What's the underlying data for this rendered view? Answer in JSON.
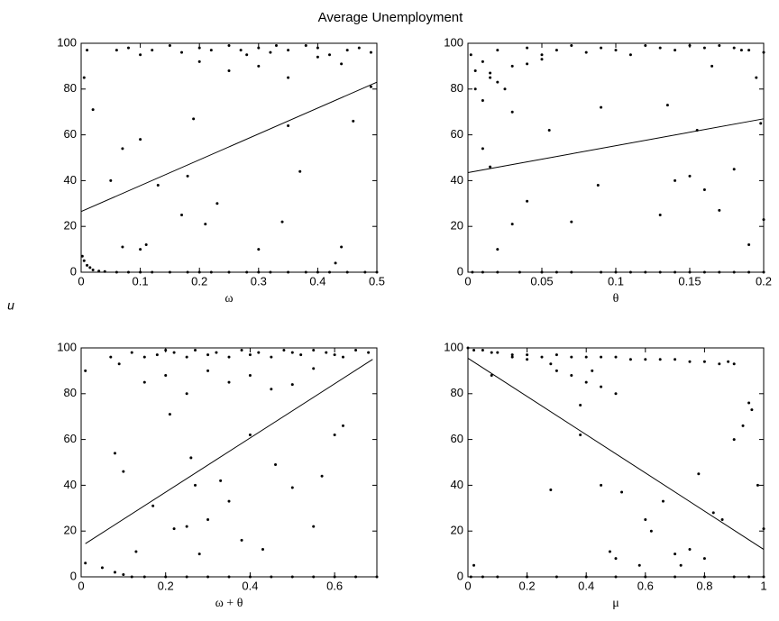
{
  "title": "Average Unemployment",
  "ylabel": "u",
  "chart_data": [
    {
      "type": "scatter",
      "xlabel": "ω",
      "xlim": [
        0,
        0.5
      ],
      "ylim": [
        0,
        100
      ],
      "xticks": [
        0,
        0.1,
        0.2,
        0.3,
        0.4,
        0.5
      ],
      "yticks": [
        0,
        20,
        40,
        60,
        80,
        100
      ],
      "series": [
        {
          "type": "scatter",
          "color": "#000000",
          "x": [
            0.002,
            0.005,
            0.01,
            0.015,
            0.02,
            0.03,
            0.04,
            0.06,
            0.08,
            0.1,
            0.12,
            0.15,
            0.18,
            0.2,
            0.22,
            0.25,
            0.28,
            0.3,
            0.32,
            0.35,
            0.38,
            0.4,
            0.42,
            0.45,
            0.48,
            0.5,
            0.005,
            0.01,
            0.06,
            0.08,
            0.1,
            0.12,
            0.15,
            0.17,
            0.2,
            0.22,
            0.25,
            0.27,
            0.3,
            0.32,
            0.35,
            0.38,
            0.4,
            0.42,
            0.45,
            0.47,
            0.49,
            0.2,
            0.25,
            0.28,
            0.3,
            0.33,
            0.35,
            0.4,
            0.44,
            0.02,
            0.05,
            0.07,
            0.1,
            0.11,
            0.13,
            0.17,
            0.19,
            0.21,
            0.23,
            0.3,
            0.34,
            0.35,
            0.37,
            0.43,
            0.46,
            0.49,
            0.07,
            0.1,
            0.18,
            0.44
          ],
          "values": [
            7,
            5,
            3,
            2,
            1,
            0.5,
            0.3,
            0,
            0,
            0,
            0,
            0,
            0,
            0,
            0,
            0,
            0,
            0,
            0,
            0,
            0,
            0,
            0,
            0,
            0,
            0,
            85,
            97,
            97,
            98,
            95,
            97,
            99,
            96,
            98,
            97,
            99,
            97,
            98,
            96,
            97,
            99,
            98,
            95,
            97,
            98,
            96,
            92,
            88,
            95,
            90,
            99,
            85,
            94,
            91,
            71,
            40,
            54,
            58,
            12,
            38,
            25,
            67,
            21,
            30,
            10,
            22,
            64,
            44,
            4,
            66,
            81,
            11,
            10,
            42,
            11
          ]
        },
        {
          "type": "line",
          "color": "#000000",
          "x": [
            0,
            0.5
          ],
          "values": [
            26.5,
            83
          ]
        }
      ]
    },
    {
      "type": "scatter",
      "xlabel": "θ",
      "xlim": [
        0,
        0.2
      ],
      "ylim": [
        0,
        100
      ],
      "xticks": [
        0,
        0.05,
        0.1,
        0.15,
        0.2
      ],
      "yticks": [
        0,
        20,
        40,
        60,
        80,
        100
      ],
      "series": [
        {
          "type": "scatter",
          "color": "#000000",
          "x": [
            0.002,
            0.005,
            0.01,
            0.015,
            0.02,
            0.025,
            0.03,
            0.04,
            0.05,
            0.06,
            0.07,
            0.08,
            0.09,
            0.1,
            0.11,
            0.12,
            0.13,
            0.14,
            0.15,
            0.16,
            0.17,
            0.18,
            0.19,
            0.2,
            0.005,
            0.01,
            0.015,
            0.02,
            0.03,
            0.04,
            0.05,
            0.165,
            0.185,
            0.195,
            0.003,
            0.01,
            0.02,
            0.035,
            0.05,
            0.06,
            0.07,
            0.09,
            0.1,
            0.11,
            0.12,
            0.13,
            0.14,
            0.15,
            0.16,
            0.17,
            0.18,
            0.19,
            0.2,
            0.01,
            0.02,
            0.03,
            0.04,
            0.055,
            0.07,
            0.088,
            0.09,
            0.13,
            0.135,
            0.14,
            0.15,
            0.155,
            0.16,
            0.17,
            0.18,
            0.19,
            0.198,
            0.015,
            0.2
          ],
          "values": [
            95,
            88,
            92,
            85,
            97,
            80,
            90,
            98,
            95,
            97,
            99,
            96,
            98,
            97,
            95,
            99,
            98,
            97,
            99,
            98,
            99,
            98,
            97,
            96,
            80,
            75,
            87,
            83,
            70,
            91,
            93,
            90,
            97,
            85,
            0,
            0,
            0,
            0,
            0,
            0,
            0,
            0,
            0,
            0,
            0,
            0,
            0,
            0,
            0,
            0,
            0,
            0,
            0,
            54,
            10,
            21,
            31,
            62,
            22,
            38,
            72,
            25,
            73,
            40,
            42,
            62,
            36,
            27,
            45,
            12,
            65,
            46,
            23
          ]
        },
        {
          "type": "line",
          "color": "#000000",
          "x": [
            0,
            0.2
          ],
          "values": [
            43.5,
            67
          ]
        }
      ]
    },
    {
      "type": "scatter",
      "xlabel": "ω + θ",
      "xlim": [
        0,
        0.7
      ],
      "ylim": [
        0,
        100
      ],
      "xticks": [
        0,
        0.2,
        0.4,
        0.6
      ],
      "yticks": [
        0,
        20,
        40,
        60,
        80,
        100
      ],
      "series": [
        {
          "type": "scatter",
          "color": "#000000",
          "x": [
            0.07,
            0.09,
            0.12,
            0.15,
            0.18,
            0.2,
            0.22,
            0.25,
            0.27,
            0.3,
            0.32,
            0.35,
            0.38,
            0.4,
            0.42,
            0.45,
            0.48,
            0.5,
            0.52,
            0.55,
            0.58,
            0.6,
            0.62,
            0.65,
            0.68,
            0.15,
            0.2,
            0.25,
            0.3,
            0.35,
            0.4,
            0.45,
            0.5,
            0.55,
            0.01,
            0.05,
            0.08,
            0.1,
            0.12,
            0.15,
            0.2,
            0.25,
            0.3,
            0.35,
            0.4,
            0.45,
            0.5,
            0.55,
            0.6,
            0.65,
            0.7,
            0.01,
            0.08,
            0.1,
            0.13,
            0.17,
            0.21,
            0.22,
            0.26,
            0.27,
            0.28,
            0.3,
            0.33,
            0.35,
            0.38,
            0.4,
            0.43,
            0.46,
            0.5,
            0.55,
            0.57,
            0.6,
            0.62,
            0.25
          ],
          "values": [
            96,
            93,
            98,
            96,
            97,
            99,
            98,
            96,
            99,
            97,
            98,
            96,
            99,
            97,
            98,
            96,
            99,
            98,
            97,
            99,
            98,
            97,
            96,
            99,
            98,
            85,
            88,
            80,
            90,
            85,
            88,
            82,
            84,
            91,
            6,
            4,
            2,
            1,
            0,
            0,
            0,
            0,
            0,
            0,
            0,
            0,
            0,
            0,
            0,
            0,
            0,
            90,
            54,
            46,
            11,
            31,
            71,
            21,
            52,
            40,
            10,
            25,
            42,
            33,
            16,
            62,
            12,
            49,
            39,
            22,
            44,
            62,
            66,
            22
          ]
        },
        {
          "type": "line",
          "color": "#000000",
          "x": [
            0.01,
            0.69
          ],
          "values": [
            14.5,
            95
          ]
        }
      ]
    },
    {
      "type": "scatter",
      "xlabel": "μ",
      "xlim": [
        0,
        1
      ],
      "ylim": [
        0,
        100
      ],
      "xticks": [
        0,
        0.2,
        0.4,
        0.6,
        0.8,
        1
      ],
      "yticks": [
        0,
        20,
        40,
        60,
        80,
        100
      ],
      "series": [
        {
          "type": "scatter",
          "color": "#000000",
          "x": [
            0,
            0.02,
            0.05,
            0.08,
            0.1,
            0.15,
            0.2,
            0.25,
            0.3,
            0.35,
            0.4,
            0.45,
            0.5,
            0.55,
            0.6,
            0.65,
            0.7,
            0.75,
            0.8,
            0.85,
            0.88,
            0.9,
            0.3,
            0.35,
            0.4,
            0.45,
            0.5,
            0.28,
            0.38,
            0.42,
            0.2,
            0.15,
            0.01,
            0.05,
            0.1,
            0.2,
            0.3,
            0.4,
            0.5,
            0.6,
            0.7,
            0.8,
            0.9,
            0.95,
            1,
            0.02,
            0.08,
            0.28,
            0.38,
            0.45,
            0.5,
            0.52,
            0.58,
            0.6,
            0.62,
            0.66,
            0.7,
            0.75,
            0.78,
            0.8,
            0.83,
            0.86,
            0.9,
            0.93,
            0.96,
            0.98,
            1,
            0.48,
            0.72,
            0.95
          ],
          "values": [
            100,
            99,
            99,
            98,
            98,
            97,
            97,
            96,
            97,
            96,
            96,
            96,
            96,
            95,
            95,
            95,
            95,
            94,
            94,
            93,
            94,
            93,
            90,
            88,
            85,
            83,
            80,
            93,
            75,
            90,
            95,
            96,
            0,
            0,
            0,
            0,
            0,
            0,
            0,
            0,
            0,
            0,
            0,
            0,
            0,
            5,
            88,
            38,
            62,
            40,
            8,
            37,
            5,
            25,
            20,
            33,
            10,
            12,
            45,
            8,
            28,
            25,
            60,
            66,
            73,
            40,
            21,
            11,
            5,
            76
          ]
        },
        {
          "type": "line",
          "color": "#000000",
          "x": [
            0,
            1
          ],
          "values": [
            95.5,
            12
          ]
        }
      ]
    }
  ]
}
